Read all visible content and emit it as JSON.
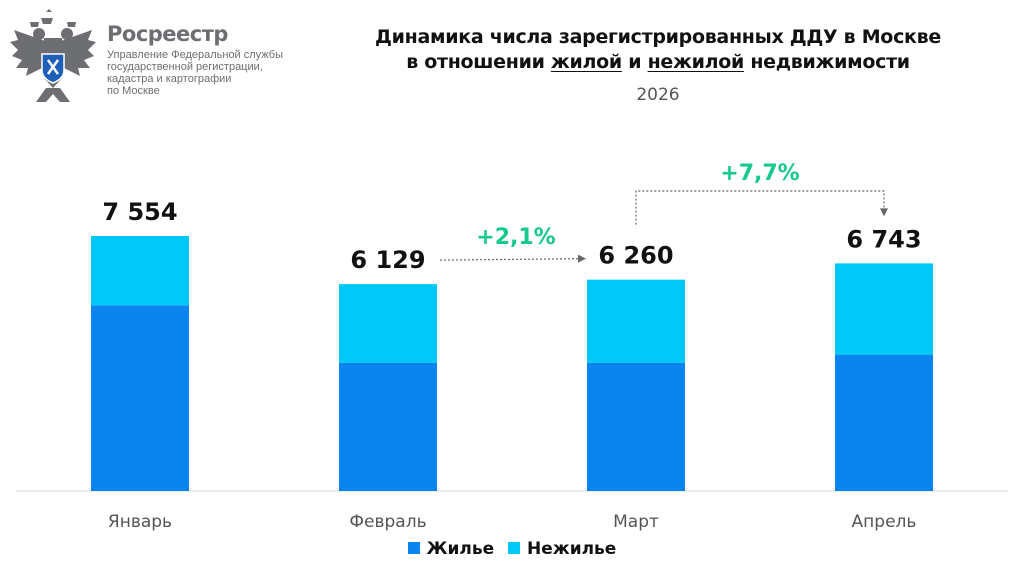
{
  "header": {
    "brand_name": "Росреестр",
    "brand_sub": [
      "Управление Федеральной службы",
      "государственной регистрации,",
      "кадастра и картографии",
      "по Москве"
    ],
    "logo_icon": "double-headed-eagle-emblem-icon"
  },
  "chart_data": {
    "type": "bar",
    "stacked": true,
    "title_line1": "Динамика числа зарегистрированных ДДУ в Москве",
    "title_line2_prefix": "в отношении ",
    "title_line2_u1": "жилой",
    "title_line2_mid": " и ",
    "title_line2_u2": "нежилой",
    "title_line2_suffix": " недвижимости",
    "subtitle": "2026",
    "categories": [
      "Январь",
      "Февраль",
      "Март",
      "Апрель"
    ],
    "series": [
      {
        "name": "Жилье",
        "color": "#0a84ee",
        "values": [
          5500,
          3800,
          3800,
          4040
        ]
      },
      {
        "name": "Нежилье",
        "color": "#00c8f8",
        "values": [
          2054,
          2329,
          2460,
          2703
        ]
      }
    ],
    "totals": [
      7554,
      6129,
      6260,
      6743
    ],
    "total_labels": [
      "7 554",
      "6 129",
      "6 260",
      "6 743"
    ],
    "ylim": [
      0,
      7554
    ],
    "grid": false,
    "legend_position": "bottom",
    "annotations": [
      {
        "label": "+2,1%",
        "from": "Февраль",
        "to": "Март",
        "color": "#17c98a"
      },
      {
        "label": "+7,7%",
        "from": "Март",
        "to": "Апрель",
        "color": "#17c98a"
      }
    ]
  }
}
